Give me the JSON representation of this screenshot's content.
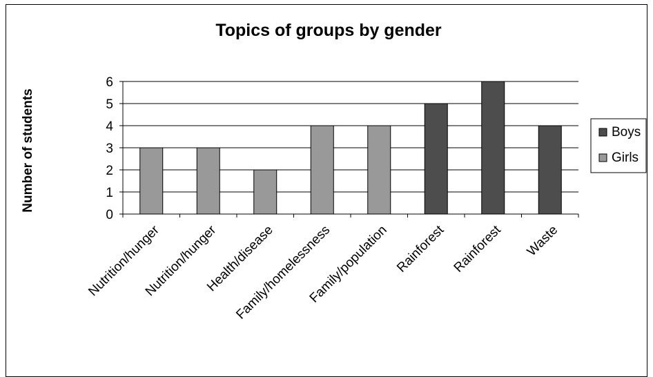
{
  "chart_data": {
    "type": "bar",
    "title": "Topics of groups by gender",
    "ylabel": "Number of students",
    "xlabel": "",
    "ylim": [
      0,
      6
    ],
    "yticks": [
      0,
      1,
      2,
      3,
      4,
      5,
      6
    ],
    "grid": true,
    "legend_position": "right",
    "categories": [
      "Nutrition/hunger",
      "Nutrition/hunger",
      "Health/disease",
      "Family/homelessness",
      "Family/population",
      "Rainforest",
      "Rainforest",
      "Waste"
    ],
    "values": [
      3,
      3,
      2,
      4,
      4,
      5,
      6,
      4
    ],
    "groups": [
      "Girls",
      "Girls",
      "Girls",
      "Girls",
      "Girls",
      "Boys",
      "Boys",
      "Boys"
    ],
    "series": [
      {
        "name": "Boys",
        "color": "#4d4d4d"
      },
      {
        "name": "Girls",
        "color": "#999999"
      }
    ]
  }
}
